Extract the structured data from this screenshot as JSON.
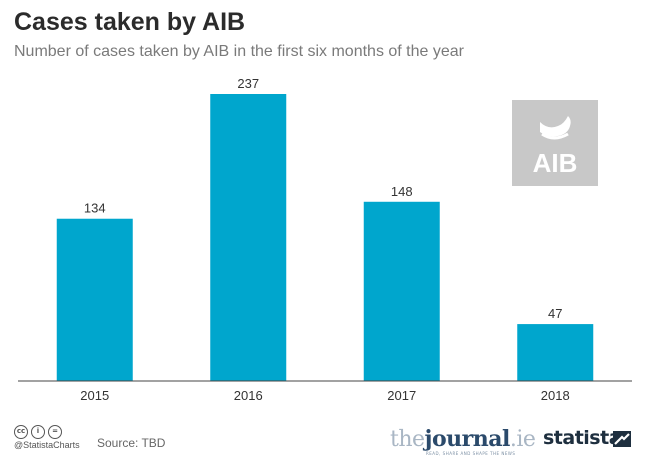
{
  "header": {
    "title": "Cases taken by AIB",
    "subtitle": "Number of cases taken by AIB in the first six months of the year"
  },
  "logo": {
    "text": "AIB",
    "background": "#c8c8c8"
  },
  "footer": {
    "handle": "@StatistaCharts",
    "source": "Source: TBD",
    "journal_prefix": "the",
    "journal_name": "journal",
    "journal_suffix": ".ie",
    "journal_tagline": "READ, SHARE AND SHAPE THE NEWS",
    "brand": "statista"
  },
  "colors": {
    "bar": "#00a6cd",
    "axis": "#444444"
  },
  "chart_data": {
    "type": "bar",
    "title": "Cases taken by AIB",
    "subtitle": "Number of cases taken by AIB in the first six months of the year",
    "categories": [
      "2015",
      "2016",
      "2017",
      "2018"
    ],
    "values": [
      134,
      237,
      148,
      47
    ],
    "xlabel": "",
    "ylabel": "",
    "ylim": [
      0,
      250
    ],
    "grid": false,
    "data_labels": true
  }
}
